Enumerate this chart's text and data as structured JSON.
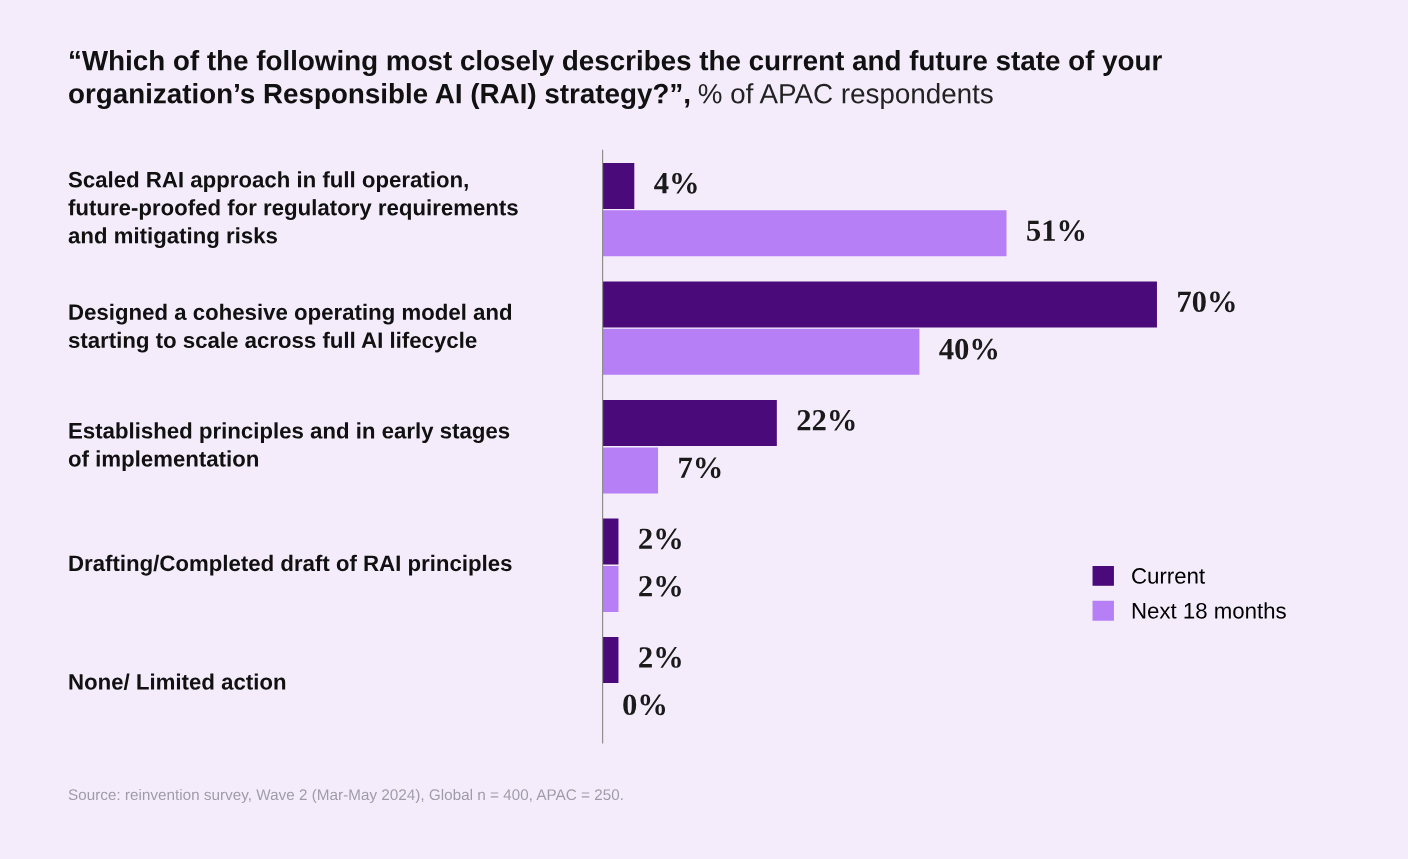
{
  "chart_data": {
    "type": "bar",
    "orientation": "horizontal",
    "title": "“Which of the following most closely describes the current and future state of your\norganization’s Responsible AI (RAI) strategy?”,",
    "subtitle": "% of APAC respondents",
    "categories": [
      "Scaled RAI approach in full operation,\nfuture-proofed for regulatory requirements\nand mitigating risks",
      "Designed a cohesive operating model and\nstarting to scale across full AI lifecycle",
      "Established principles and in early stages\nof implementation",
      "Drafting/Completed draft of RAI principles",
      "None/ Limited action"
    ],
    "series": [
      {
        "name": "Current",
        "color": "#4b0a7a",
        "values": [
          4,
          70,
          22,
          2,
          2
        ],
        "value_labels": [
          "4%",
          "70%",
          "22%",
          "2%",
          "2%"
        ]
      },
      {
        "name": "Next 18 months",
        "color": "#b67ff6",
        "values": [
          51,
          40,
          7,
          2,
          0
        ],
        "value_labels": [
          "51%",
          "40%",
          "7%",
          "2%",
          "0%"
        ]
      }
    ],
    "legend": "right",
    "annotations": [
      "Source: reinvention survey, Wave 2 (Mar-May 2024), Global n = 400, APAC = 250."
    ]
  }
}
